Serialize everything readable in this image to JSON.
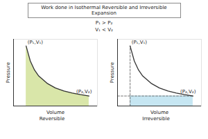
{
  "title": "Work done in Isothermal Reversible and Irreversible Expansion",
  "subtitle": [
    "P₁ > P₂",
    "V₁ < V₂"
  ],
  "chart_data": [
    {
      "type": "area",
      "caption": "Reversible",
      "x_label": "Volume",
      "y_label": "Pressure",
      "xlim": [
        0,
        10
      ],
      "ylim": [
        0,
        10
      ],
      "xticks": [],
      "yticks": [],
      "tick_labels": false,
      "series": [
        {
          "type": "area",
          "line_style": "solid",
          "color": "#d9e6a9",
          "x": [
            1.5,
            2,
            2.5,
            3,
            4,
            5,
            6,
            7,
            8,
            9
          ],
          "values": [
            9,
            6.75,
            5.4,
            4.5,
            3.4,
            2.7,
            2.25,
            1.95,
            1.7,
            1.5
          ]
        }
      ],
      "annotations": [
        {
          "text": "(P₁,V₁)",
          "x": 1.5,
          "y": 9
        },
        {
          "text": "(P₂,V₂)",
          "x": 9,
          "y": 1.5
        }
      ]
    },
    {
      "type": "line",
      "caption": "Irreversible",
      "x_label": "Volume",
      "y_label": "Pressure",
      "xlim": [
        0,
        10
      ],
      "ylim": [
        0,
        10
      ],
      "xticks": [],
      "yticks": [],
      "tick_labels": false,
      "series": [
        {
          "type": "area",
          "color": "#c6e6f2",
          "x": [
            1.5,
            9
          ],
          "values": [
            1.5,
            1.5
          ]
        },
        {
          "type": "line",
          "line_style": "dashed",
          "color": "#555555",
          "x": [
            1.5,
            1.5
          ],
          "values": [
            0,
            9
          ]
        },
        {
          "type": "line",
          "line_style": "dashed",
          "color": "#555555",
          "x": [
            0,
            9
          ],
          "values": [
            1.5,
            1.5
          ]
        },
        {
          "type": "line",
          "line_style": "solid",
          "color": "#333333",
          "x": [
            1.5,
            2,
            2.5,
            3,
            4,
            5,
            6,
            7,
            8,
            9
          ],
          "values": [
            9,
            6.75,
            5.4,
            4.5,
            3.4,
            2.7,
            2.25,
            1.95,
            1.7,
            1.5
          ]
        }
      ],
      "annotations": [
        {
          "text": "(P₁,V₁)",
          "x": 1.5,
          "y": 9
        },
        {
          "text": "(P₂,V₂)",
          "x": 9,
          "y": 1.5
        }
      ]
    }
  ]
}
